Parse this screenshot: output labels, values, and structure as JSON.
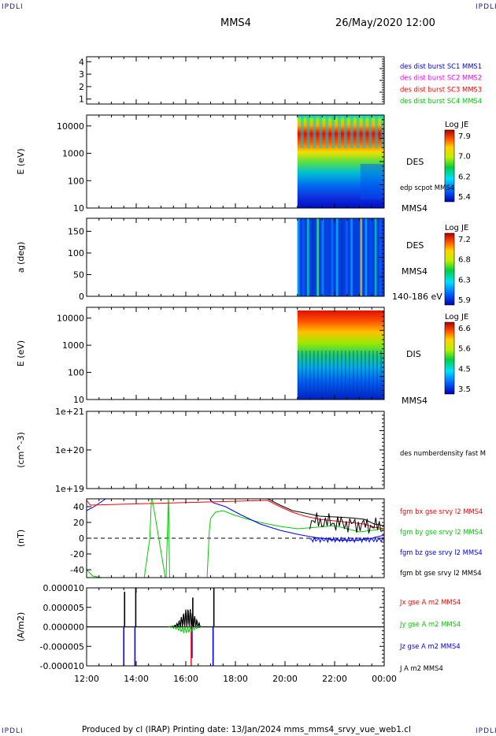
{
  "corner_tl": "IPDLI",
  "corner_tr": "IPDLI",
  "corner_bl": "IPDLI",
  "corner_br": "IPDLI",
  "header": {
    "spacecraft": "MMS4",
    "datetime": "26/May/2020 12:00"
  },
  "footer": {
    "text": "Produced by cl (IRAP)   Printing date: 13/Jan/2024   mms_mms4_srvy_vue_web1.cl"
  },
  "colors": {
    "blue": "#0000ff",
    "magenta": "#ff00ff",
    "red": "#ff0000",
    "green": "#00cc00",
    "black": "#000000"
  },
  "chart_data": [
    {
      "type": "line",
      "id": "availability",
      "yticks": [
        "1",
        "2",
        "3",
        "4"
      ],
      "ylim": [
        0.6,
        4.4
      ],
      "legend": [
        {
          "label": "des dist burst SC1 MMS1",
          "color": "#0000ff"
        },
        {
          "label": "des dist burst SC2 MMS2",
          "color": "#ff00ff"
        },
        {
          "label": "des dist burst SC3 MMS3",
          "color": "#ff0000"
        },
        {
          "label": "des dist burst SC4 MMS4",
          "color": "#00cc00"
        }
      ],
      "series": []
    },
    {
      "type": "heatmap",
      "id": "des-energy",
      "ylabel": "E (eV)",
      "yscale": "log",
      "yticks": [
        "10",
        "100",
        "1000",
        "10000"
      ],
      "ylim": [
        10,
        25000
      ],
      "data_range_hours": [
        20.5,
        24.0
      ],
      "labels": [
        "DES",
        "edp scpot MMS4",
        "MMS4"
      ],
      "colorbar": {
        "title": "Log JE",
        "ticks": [
          "7.9",
          "7.0",
          "6.2",
          "5.4"
        ],
        "range": [
          5.4,
          7.9
        ]
      }
    },
    {
      "type": "heatmap",
      "id": "des-pitch",
      "ylabel": "a (deg)",
      "yticks": [
        "0",
        "50",
        "100",
        "150"
      ],
      "ylim": [
        0,
        180
      ],
      "data_range_hours": [
        20.5,
        24.0
      ],
      "labels": [
        "DES",
        "MMS4",
        "140-186 eV"
      ],
      "colorbar": {
        "title": "Log JE",
        "ticks": [
          "7.2",
          "6.8",
          "6.3",
          "5.9"
        ],
        "range": [
          5.9,
          7.2
        ]
      }
    },
    {
      "type": "heatmap",
      "id": "dis-energy",
      "ylabel": "E (eV)",
      "yscale": "log",
      "yticks": [
        "10",
        "100",
        "1000",
        "10000"
      ],
      "ylim": [
        10,
        25000
      ],
      "data_range_hours": [
        20.5,
        24.0
      ],
      "labels": [
        "DIS",
        "MMS4"
      ],
      "colorbar": {
        "title": "Log JE",
        "ticks": [
          "6.6",
          "5.6",
          "4.5",
          "3.5"
        ],
        "range": [
          3.5,
          6.6
        ]
      }
    },
    {
      "type": "line",
      "id": "density",
      "ylabel": "(cm^-3)",
      "yscale": "log",
      "yticks": [
        "1e+19",
        "1e+20",
        "1e+21"
      ],
      "ylim": [
        1e+19,
        1e+21
      ],
      "legend": [
        {
          "label": "des numberdensity fast M",
          "color": "#000000"
        }
      ],
      "series": []
    },
    {
      "type": "line",
      "id": "fgm",
      "ylabel": "(nT)",
      "yticks": [
        "-40",
        "-20",
        "0",
        "20",
        "40"
      ],
      "ylim": [
        -50,
        50
      ],
      "zero_line": true,
      "legend": [
        {
          "label": "fgm bx gse srvy l2 MMS4",
          "color": "#ff0000"
        },
        {
          "label": "fgm by gse srvy l2 MMS4",
          "color": "#00cc00"
        },
        {
          "label": "fgm bz gse srvy l2 MMS4",
          "color": "#0000ff"
        },
        {
          "label": "fgm bt gse srvy l2 MMS4",
          "color": "#000000"
        }
      ],
      "series": [
        {
          "name": "fgm by gse srvy l2 MMS4",
          "color": "#00cc00",
          "x": [
            12.0,
            12.25,
            13.5,
            14.3,
            14.55,
            14.62,
            15.2,
            15.3,
            15.35,
            16.85,
            16.95,
            17.0,
            17.2,
            17.5,
            17.9,
            18.4,
            19.0,
            19.8,
            20.5,
            21.3,
            22.0,
            22.5,
            23.0,
            23.5,
            24.0
          ],
          "y": [
            -40,
            -48,
            -55,
            -55,
            0,
            55,
            -55,
            55,
            -55,
            -55,
            10,
            25,
            33,
            35,
            30,
            25,
            20,
            15,
            12,
            14,
            16,
            12,
            8,
            10,
            12
          ]
        },
        {
          "name": "fgm bz gse srvy l2 MMS4",
          "color": "#0000ff",
          "x": [
            12.0,
            12.3,
            13.0,
            16.8,
            17.1,
            17.6,
            18.2,
            19.0,
            19.8,
            20.5,
            21.2,
            22.0,
            22.8,
            23.5,
            24.0
          ],
          "y": [
            35,
            40,
            55,
            55,
            45,
            40,
            30,
            18,
            10,
            5,
            1,
            -2,
            -3,
            0,
            4
          ]
        },
        {
          "name": "fgm bx gse srvy l2 MMS4",
          "color": "#ff0000",
          "x": [
            12.0,
            12.15,
            19.3,
            19.8,
            20.3,
            20.8,
            21.4,
            22.0,
            22.6,
            23.2,
            23.6,
            24.0
          ],
          "y": [
            48,
            42,
            48,
            40,
            33,
            28,
            24,
            22,
            20,
            18,
            14,
            12
          ]
        },
        {
          "name": "fgm bt gse srvy l2 MMS4",
          "color": "#000000",
          "x": [
            19.3,
            19.8,
            20.3,
            20.8,
            21.4,
            22.0,
            22.6,
            23.2,
            23.6,
            24.0
          ],
          "y": [
            50,
            42,
            35,
            32,
            28,
            27,
            26,
            24,
            18,
            16
          ]
        }
      ]
    },
    {
      "type": "line",
      "id": "current",
      "ylabel": "(A/m2)",
      "yticks": [
        "-0.000010",
        "-0.000005",
        "0.000000",
        "0.000005",
        "0.000010"
      ],
      "ylim": [
        -1e-05,
        1e-05
      ],
      "xticks": [
        "12:00",
        "14:00",
        "16:00",
        "18:00",
        "20:00",
        "22:00",
        "00:00"
      ],
      "xlim_hours": [
        12,
        24
      ],
      "legend": [
        {
          "label": "Jx gse A m2 MMS4",
          "color": "#ff0000"
        },
        {
          "label": "Jy gse A m2 MMS4",
          "color": "#00cc00"
        },
        {
          "label": "Jz gse A m2 MMS4",
          "color": "#0000ff"
        },
        {
          "label": "J A m2 MMS4",
          "color": "#000000"
        }
      ],
      "spikes": [
        {
          "x": 13.5,
          "j": 9e-06,
          "jz": -1e-05
        },
        {
          "x": 13.95,
          "j": 1e-05,
          "jz": -1e-05
        },
        {
          "x": 16.25,
          "j": 7.5e-06,
          "jz": -8e-06,
          "jx": -1e-05
        },
        {
          "x": 17.1,
          "j": 1e-05,
          "jz": -1e-05
        }
      ]
    }
  ]
}
